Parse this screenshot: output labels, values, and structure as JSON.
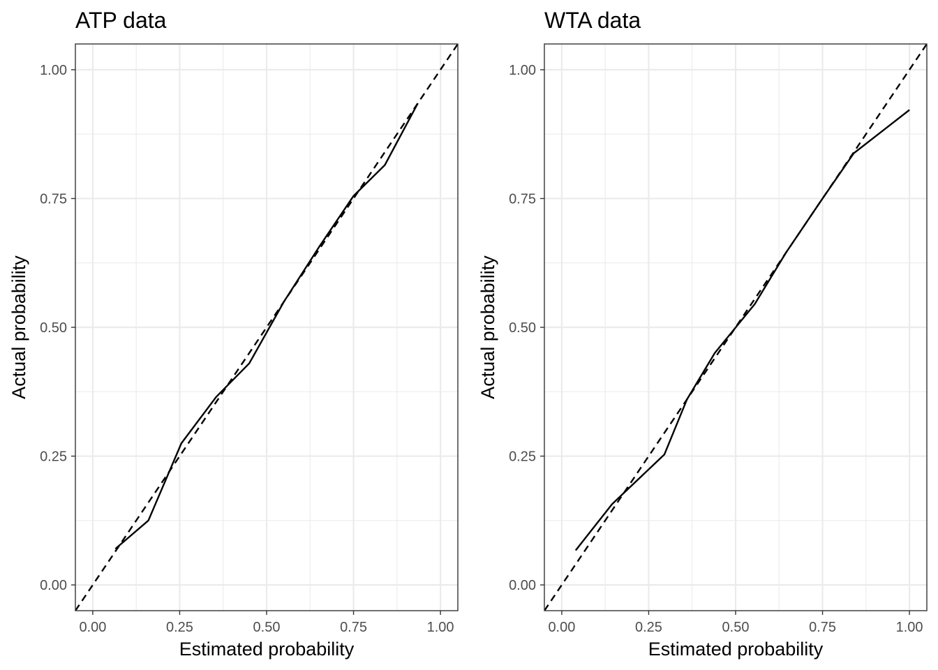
{
  "chart_data": [
    {
      "type": "line",
      "title": "ATP data",
      "xlabel": "Estimated probability",
      "ylabel": "Actual probability",
      "xlim": [
        -0.05,
        1.05
      ],
      "ylim": [
        -0.05,
        1.05
      ],
      "xticks": [
        "0.00",
        "0.25",
        "0.50",
        "0.75",
        "1.00"
      ],
      "yticks": [
        "0.00",
        "0.25",
        "0.50",
        "0.75",
        "1.00"
      ],
      "grid": true,
      "reference_line": {
        "style": "dashed",
        "slope": 1,
        "intercept": 0
      },
      "series": [
        {
          "x": [
            0.065,
            0.16,
            0.255,
            0.355,
            0.45,
            0.55,
            0.65,
            0.75,
            0.84,
            0.935
          ],
          "y": [
            0.07,
            0.125,
            0.275,
            0.365,
            0.43,
            0.55,
            0.655,
            0.755,
            0.815,
            0.935
          ]
        }
      ]
    },
    {
      "type": "line",
      "title": "WTA data",
      "xlabel": "Estimated probability",
      "ylabel": "Actual probability",
      "xlim": [
        -0.05,
        1.05
      ],
      "ylim": [
        -0.05,
        1.05
      ],
      "xticks": [
        "0.00",
        "0.25",
        "0.50",
        "0.75",
        "1.00"
      ],
      "yticks": [
        "0.00",
        "0.25",
        "0.50",
        "0.75",
        "1.00"
      ],
      "grid": true,
      "reference_line": {
        "style": "dashed",
        "slope": 1,
        "intercept": 0
      },
      "series": [
        {
          "x": [
            0.04,
            0.145,
            0.295,
            0.36,
            0.44,
            0.555,
            0.645,
            0.745,
            0.84,
            1.0
          ],
          "y": [
            0.067,
            0.157,
            0.253,
            0.36,
            0.45,
            0.545,
            0.645,
            0.745,
            0.838,
            0.922
          ]
        }
      ]
    }
  ]
}
